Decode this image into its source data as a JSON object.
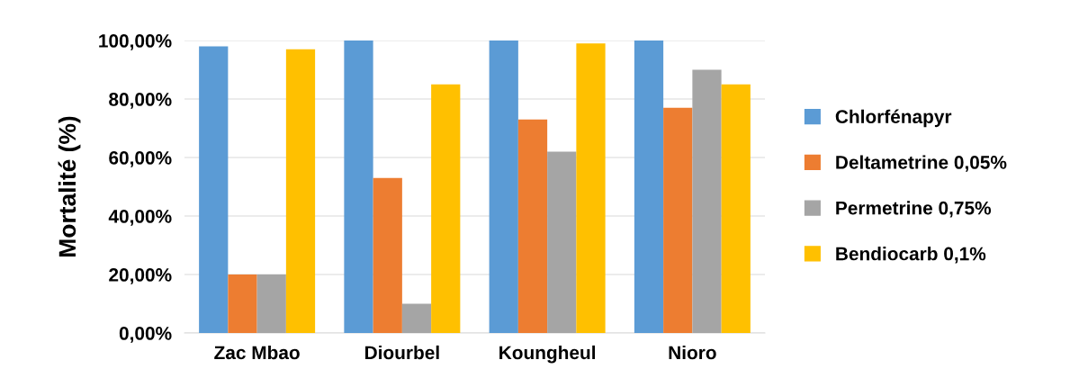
{
  "chart_data": {
    "type": "bar",
    "ylabel": "Mortalité (%)",
    "categories": [
      "Zac Mbao",
      "Diourbel",
      "Koungheul",
      "Nioro"
    ],
    "series": [
      {
        "name": "Chlorfénapyr",
        "color": "#5b9bd5",
        "values": [
          98,
          100,
          100,
          100
        ]
      },
      {
        "name": "Deltametrine 0,05%",
        "color": "#ed7d31",
        "values": [
          20,
          53,
          73,
          77
        ]
      },
      {
        "name": "Permetrine 0,75%",
        "color": "#a5a5a5",
        "values": [
          20,
          10,
          62,
          90
        ]
      },
      {
        "name": "Bendiocarb 0,1%",
        "color": "#ffc000",
        "values": [
          97,
          85,
          99,
          85
        ]
      }
    ],
    "ylim": [
      0,
      100
    ],
    "yticks": [
      {
        "value": 0,
        "label": "0,00%"
      },
      {
        "value": 20,
        "label": "20,00%"
      },
      {
        "value": 40,
        "label": "40,00%"
      },
      {
        "value": 60,
        "label": "60,00%"
      },
      {
        "value": 80,
        "label": "80,00%"
      },
      {
        "value": 100,
        "label": "100,00%"
      }
    ],
    "grid": "y",
    "legend": "right"
  }
}
